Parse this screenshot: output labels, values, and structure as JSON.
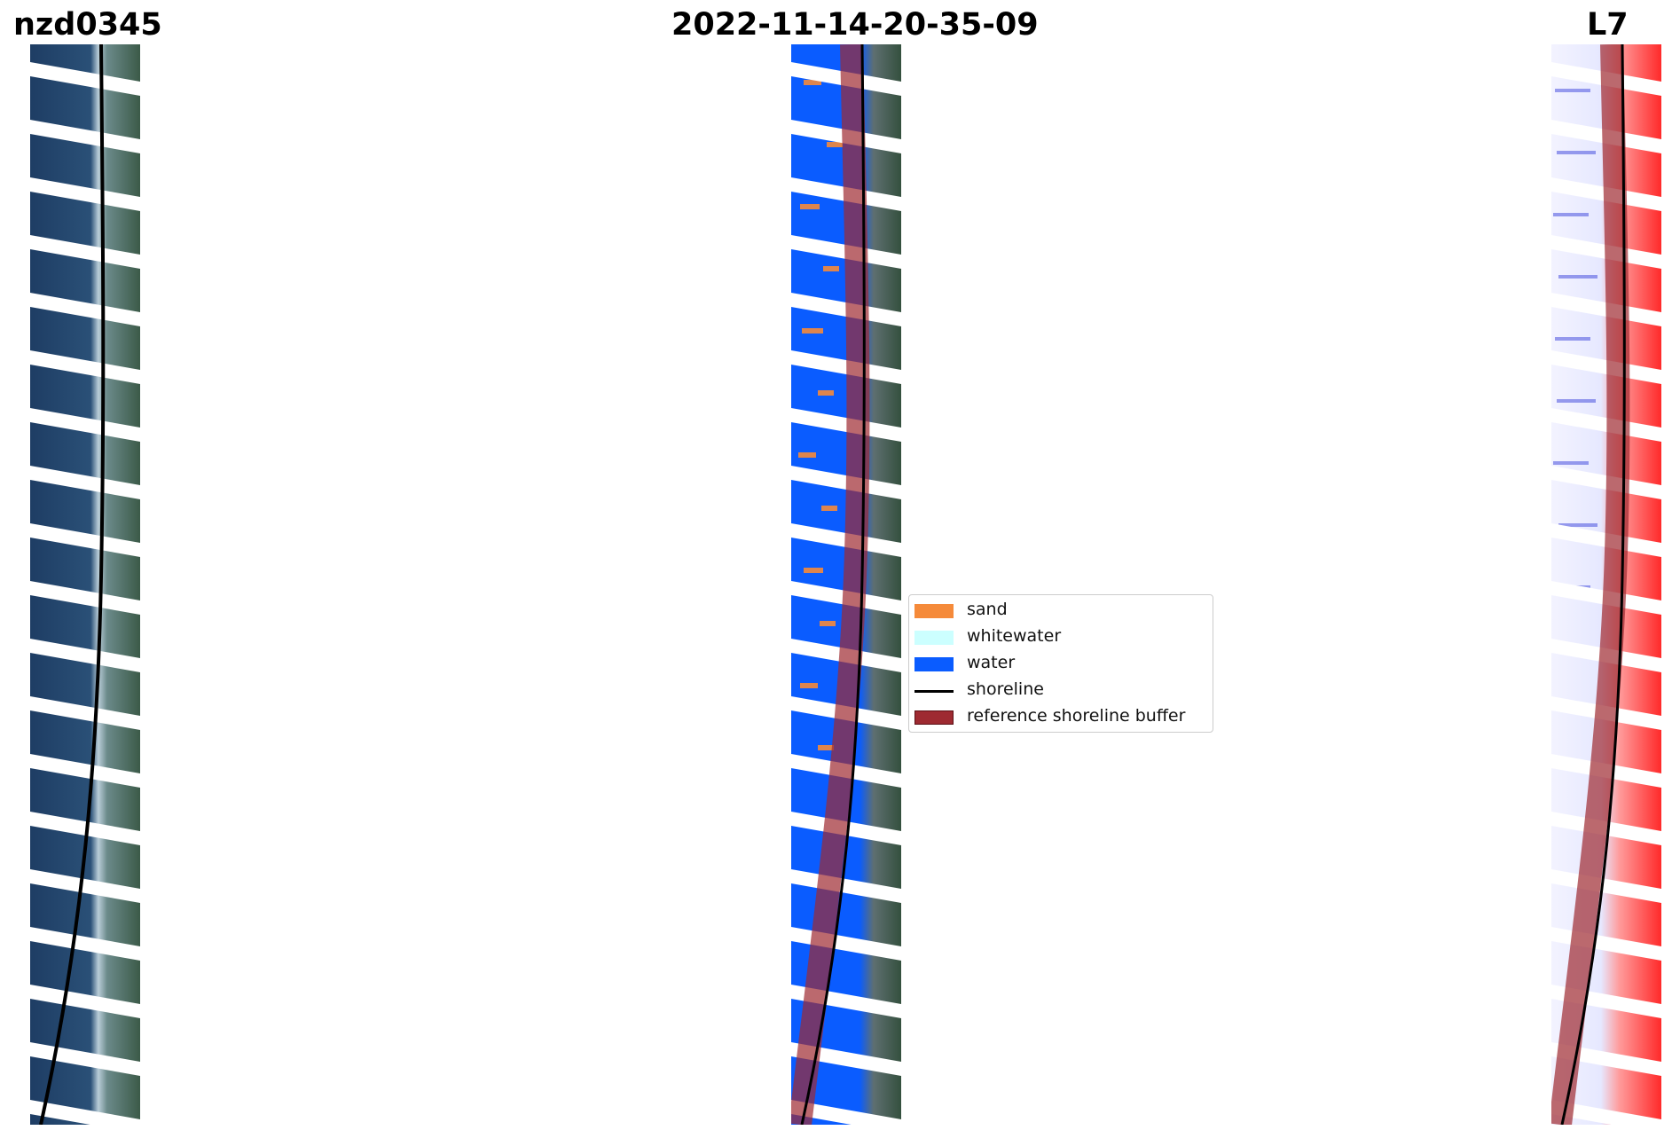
{
  "titles": {
    "site": "nzd0345",
    "date": "2022-11-14-20-35-09",
    "satellite": "L7"
  },
  "panels": [
    {
      "id": "panel-rgb",
      "content": "rgb-image-with-shoreline"
    },
    {
      "id": "panel-class",
      "content": "classified-image-with-buffer"
    },
    {
      "id": "panel-mndwi",
      "content": "mndwi-image-with-buffer"
    }
  ],
  "legend": {
    "items": [
      {
        "label": "sand",
        "color": "#f58a3a",
        "kind": "patch"
      },
      {
        "label": "whitewater",
        "color": "#ccffff",
        "kind": "patch"
      },
      {
        "label": "water",
        "color": "#0a5cff",
        "kind": "patch"
      },
      {
        "label": "shoreline",
        "color": "#000000",
        "kind": "line"
      },
      {
        "label": "reference shoreline buffer",
        "color": "#9e2a31",
        "kind": "patch"
      }
    ]
  },
  "colors": {
    "buffer": "#9e2a31",
    "water_class": "#0a5cff",
    "sand_class": "#f58a3a",
    "ocean_rgb": "#1f3f66",
    "land_rgb": "#3a5a48",
    "mndwi_land": "#ff2a2a",
    "scanline_gap": "#ffffff"
  }
}
